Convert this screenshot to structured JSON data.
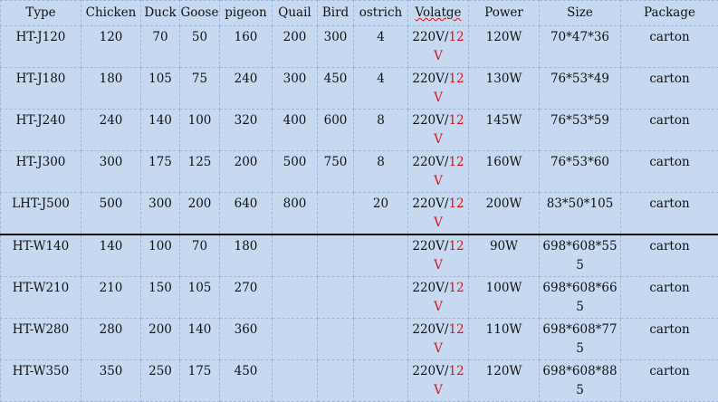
{
  "headers": [
    "Type",
    "Chicken",
    "Duck",
    "Goose",
    "pigeon",
    "Quail",
    "Bird",
    "ostrich",
    "Volatge",
    "Power",
    "Size",
    "Package"
  ],
  "voltage": {
    "main": "220V/",
    "red_part": "12",
    "red_v": "V"
  },
  "accent_red": "#dd1111",
  "rows": [
    {
      "type": "HT-J120",
      "chicken": "120",
      "duck": "70",
      "goose": "50",
      "pigeon": "160",
      "quail": "200",
      "bird": "300",
      "ostrich": "4",
      "power": "120W",
      "size": "70*47*36",
      "package": "carton"
    },
    {
      "type": "HT-J180",
      "chicken": "180",
      "duck": "105",
      "goose": "75",
      "pigeon": "240",
      "quail": "300",
      "bird": "450",
      "ostrich": "4",
      "power": "130W",
      "size": "76*53*49",
      "package": "carton"
    },
    {
      "type": "HT-J240",
      "chicken": "240",
      "duck": "140",
      "goose": "100",
      "pigeon": "320",
      "quail": "400",
      "bird": "600",
      "ostrich": "8",
      "power": "145W",
      "size": "76*53*59",
      "package": "carton"
    },
    {
      "type": "HT-J300",
      "chicken": "300",
      "duck": "175",
      "goose": "125",
      "pigeon": "200",
      "quail": "500",
      "bird": "750",
      "ostrich": "8",
      "power": "160W",
      "size": "76*53*60",
      "package": "carton"
    },
    {
      "type": "LHT-J500",
      "chicken": "500",
      "duck": "300",
      "goose": "200",
      "pigeon": "640",
      "quail": "800",
      "bird": "",
      "ostrich": "20",
      "power": "200W",
      "size": "83*50*105",
      "package": "carton"
    },
    {
      "type": "HT-W140",
      "chicken": "140",
      "duck": "100",
      "goose": "70",
      "pigeon": "180",
      "quail": "",
      "bird": "",
      "ostrich": "",
      "power": "90W",
      "size": "698*608*555",
      "package": "carton"
    },
    {
      "type": "HT-W210",
      "chicken": "210",
      "duck": "150",
      "goose": "105",
      "pigeon": "270",
      "quail": "",
      "bird": "",
      "ostrich": "",
      "power": "100W",
      "size": "698*608*665",
      "package": "carton"
    },
    {
      "type": "HT-W280",
      "chicken": "280",
      "duck": "200",
      "goose": "140",
      "pigeon": "360",
      "quail": "",
      "bird": "",
      "ostrich": "",
      "power": "110W",
      "size": "698*608*775",
      "package": "carton"
    },
    {
      "type": "HT-W350",
      "chicken": "350",
      "duck": "250",
      "goose": "175",
      "pigeon": "450",
      "quail": "",
      "bird": "",
      "ostrich": "",
      "power": "120W",
      "size": "698*608*885",
      "package": "carton"
    }
  ]
}
